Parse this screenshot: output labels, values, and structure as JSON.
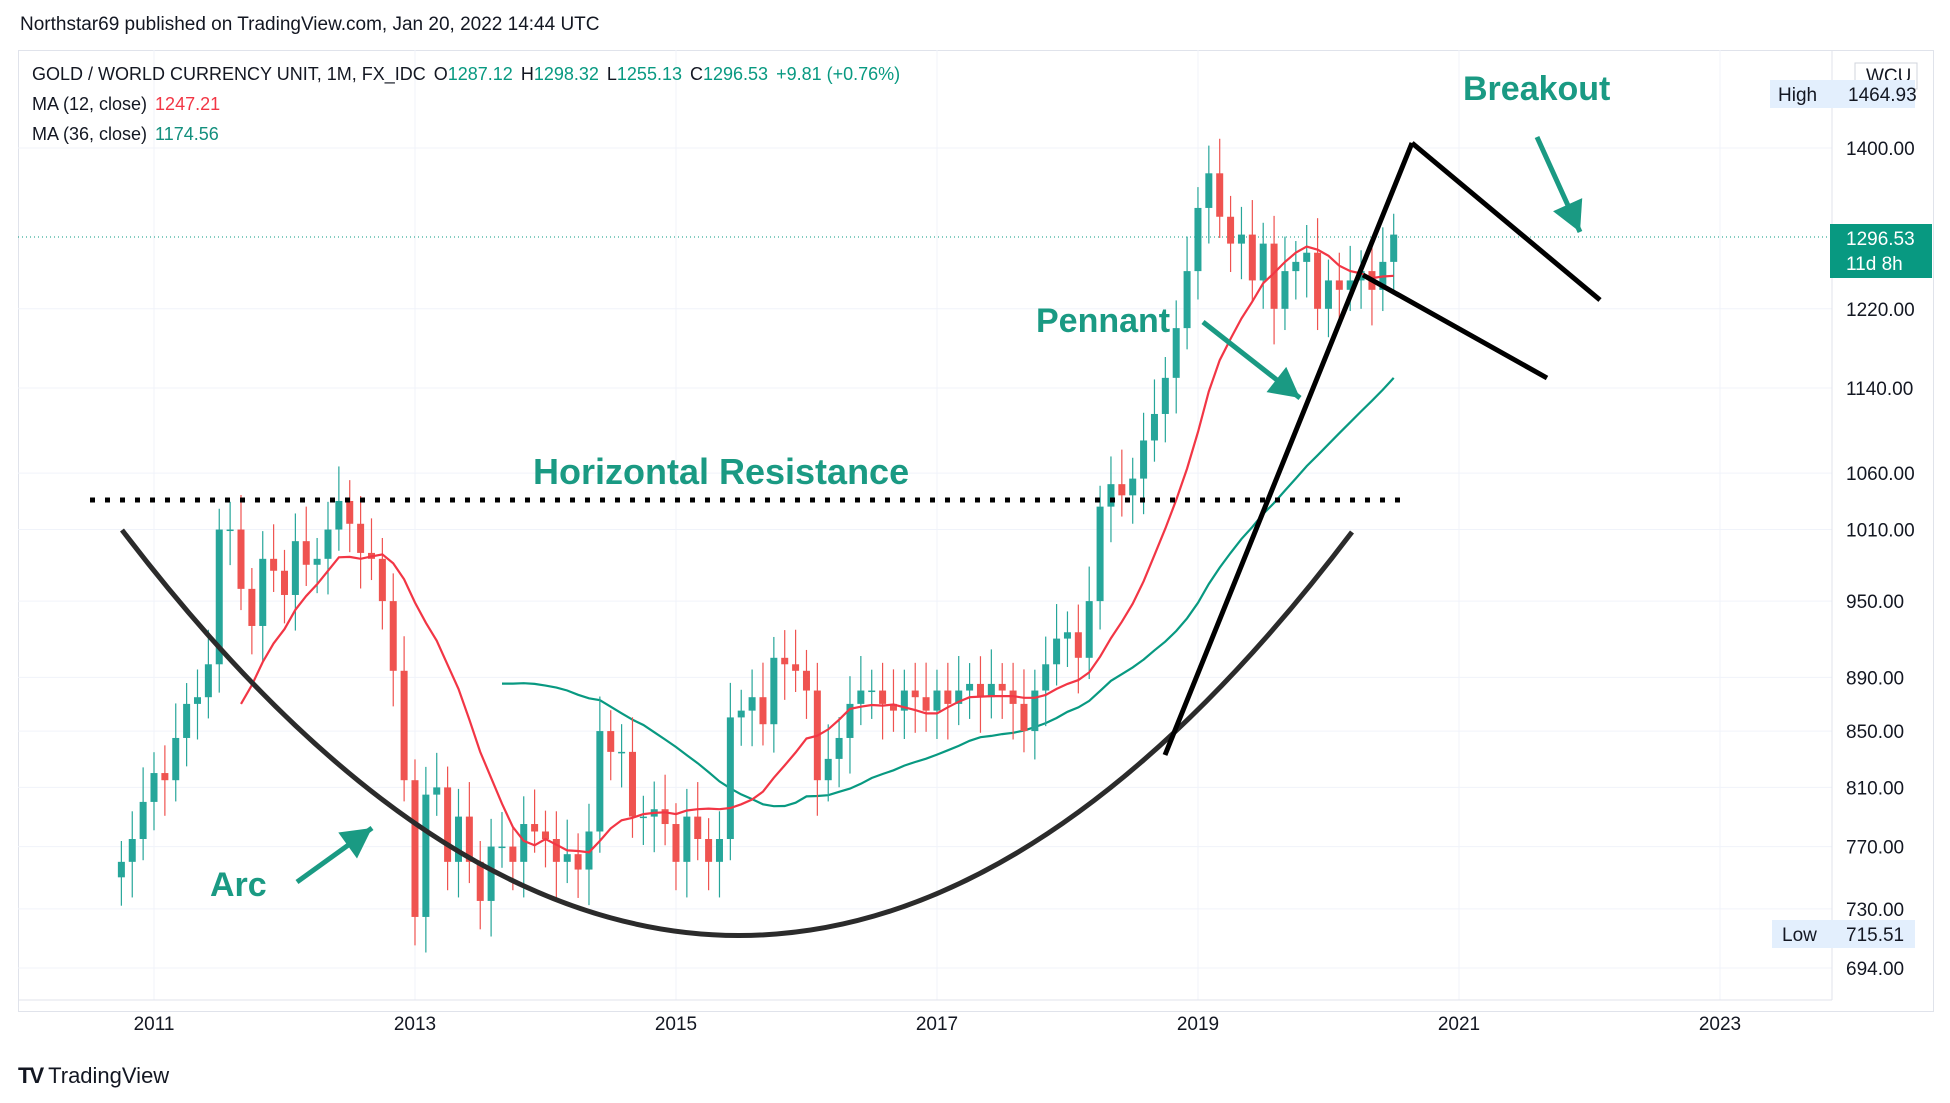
{
  "header": {
    "publish_line": "Northstar69 published on TradingView.com, Jan 20, 2022 14:44 UTC"
  },
  "legend": {
    "symbol": "GOLD / WORLD CURRENCY UNIT, 1M, FX_IDC",
    "o_label": "O",
    "o_value": "1287.12",
    "h_label": "H",
    "h_value": "1298.32",
    "l_label": "L",
    "l_value": "1255.13",
    "c_label": "C",
    "c_value": "1296.53",
    "change": "+9.81 (+0.76%)",
    "ma12_label": "MA (12, close)",
    "ma12_value": "1247.21",
    "ma36_label": "MA (36, close)",
    "ma36_value": "1174.56"
  },
  "badges": {
    "currency": "WCU",
    "high_label": "High",
    "high_value": "1464.93",
    "low_label": "Low",
    "low_value": "715.51",
    "last_price": "1296.53",
    "countdown": "11d 8h"
  },
  "annotations": {
    "breakout": "Breakout",
    "pennant": "Pennant",
    "resistance": "Horizontal Resistance",
    "arc": "Arc"
  },
  "watermark": {
    "logo": "TV",
    "text": "TradingView"
  },
  "colors": {
    "up": "#26a69a",
    "down": "#ef5350",
    "ma12": "#f23645",
    "ma36": "#089981",
    "annotation": "#1a9a83",
    "drawing": "#000000",
    "arc": "#2b2b2b"
  },
  "chart_data": {
    "type": "candlestick",
    "title": "GOLD / WORLD CURRENCY UNIT, 1M, FX_IDC",
    "y_scale": "log",
    "ylim": [
      680,
      1480
    ],
    "y_ticks": [
      "1400.00",
      "1220.00",
      "1140.00",
      "1060.00",
      "1010.00",
      "950.00",
      "890.00",
      "850.00",
      "810.00",
      "770.00",
      "730.00",
      "694.00"
    ],
    "y_tick_values": [
      1400,
      1220,
      1140,
      1060,
      1010,
      950,
      890,
      850,
      810,
      770,
      730,
      694
    ],
    "x_ticks": [
      "2011",
      "2013",
      "2015",
      "2017",
      "2019",
      "2021",
      "2023"
    ],
    "xlim_years": [
      2010.05,
      2023.55
    ],
    "grid": true,
    "close_series": [
      {
        "start": 2010.75,
        "step": 0.08333,
        "closes": [
          760,
          775,
          800,
          820,
          815,
          845,
          870,
          875,
          900,
          1010,
          1010,
          960,
          930,
          985,
          975,
          955,
          1000,
          980,
          985,
          1010,
          1035,
          1015,
          990,
          985,
          950,
          895,
          815,
          725,
          805,
          810,
          760,
          790,
          760,
          735,
          770,
          770,
          760,
          785,
          780,
          775,
          760,
          765,
          755,
          780,
          850,
          835,
          835,
          790,
          790,
          795,
          785,
          760,
          790,
          775,
          760,
          775,
          860,
          865,
          875,
          855,
          905,
          900,
          895,
          880,
          815,
          830,
          845,
          870,
          880,
          880,
          870,
          865,
          880,
          875,
          865,
          880,
          870,
          880,
          885,
          875,
          885,
          880,
          870,
          850,
          880,
          900,
          920,
          925,
          905,
          950,
          1030,
          1050,
          1040,
          1055,
          1090,
          1115,
          1150,
          1200,
          1260,
          1330,
          1370,
          1320,
          1290,
          1300,
          1250,
          1290,
          1220,
          1260,
          1270,
          1280,
          1220,
          1250,
          1240,
          1250,
          1260,
          1240,
          1270,
          1300
        ]
      }
    ],
    "series": [
      {
        "name": "MA (12, close)",
        "last_value": 1247.21
      },
      {
        "name": "MA (36, close)",
        "last_value": 1174.56
      }
    ]
  }
}
